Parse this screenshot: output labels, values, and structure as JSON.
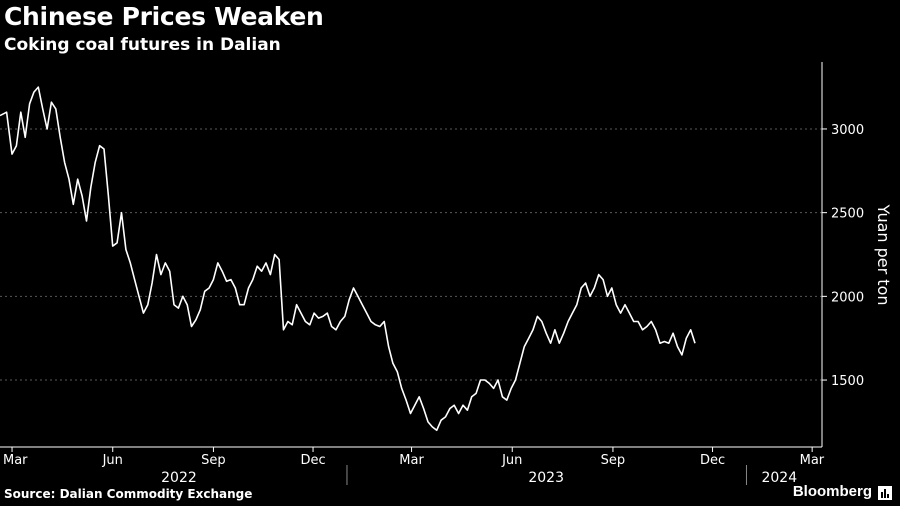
{
  "title": "Chinese Prices Weaken",
  "subtitle": "Coking coal futures in Dalian",
  "source": "Source: Dalian Commodity Exchange",
  "brand": "Bloomberg",
  "colors": {
    "background": "#000000",
    "line": "#ffffff",
    "grid": "#5a5a5a"
  },
  "chart_data": {
    "type": "line",
    "title": "Chinese Prices Weaken",
    "subtitle": "Coking coal futures in Dalian",
    "xlabel": "",
    "ylabel": "Yuan per ton",
    "ylim": [
      1100,
      3400
    ],
    "y_ticks": [
      1500,
      2000,
      2500,
      3000
    ],
    "grid": "horizontal dotted",
    "y_axis_side": "right",
    "x_ticks": [
      {
        "date": "2022-03-01",
        "label": "Mar"
      },
      {
        "date": "2022-06-01",
        "label": "Jun"
      },
      {
        "date": "2022-09-01",
        "label": "Sep"
      },
      {
        "date": "2022-12-01",
        "label": "Dec"
      },
      {
        "date": "2023-03-01",
        "label": "Mar"
      },
      {
        "date": "2023-06-01",
        "label": "Jun"
      },
      {
        "date": "2023-09-01",
        "label": "Sep"
      },
      {
        "date": "2023-12-01",
        "label": "Dec"
      },
      {
        "date": "2024-03-01",
        "label": "Mar"
      }
    ],
    "years": [
      {
        "label": "2022",
        "from": "2022-03-01",
        "to": "2022-12-31"
      },
      {
        "label": "2023",
        "from": "2023-01-01",
        "to": "2023-12-31"
      },
      {
        "label": "2024",
        "from": "2024-01-01",
        "to": "2024-03-01"
      }
    ],
    "series": [
      {
        "name": "",
        "points": [
          [
            "2022-02-18",
            3080
          ],
          [
            "2022-02-24",
            3100
          ],
          [
            "2022-03-01",
            2850
          ],
          [
            "2022-03-05",
            2900
          ],
          [
            "2022-03-09",
            3100
          ],
          [
            "2022-03-13",
            2950
          ],
          [
            "2022-03-17",
            3150
          ],
          [
            "2022-03-21",
            3220
          ],
          [
            "2022-03-25",
            3250
          ],
          [
            "2022-03-29",
            3120
          ],
          [
            "2022-04-02",
            3000
          ],
          [
            "2022-04-06",
            3160
          ],
          [
            "2022-04-10",
            3120
          ],
          [
            "2022-04-14",
            2950
          ],
          [
            "2022-04-18",
            2800
          ],
          [
            "2022-04-22",
            2700
          ],
          [
            "2022-04-26",
            2550
          ],
          [
            "2022-04-30",
            2700
          ],
          [
            "2022-05-04",
            2600
          ],
          [
            "2022-05-08",
            2450
          ],
          [
            "2022-05-12",
            2650
          ],
          [
            "2022-05-16",
            2800
          ],
          [
            "2022-05-20",
            2900
          ],
          [
            "2022-05-24",
            2880
          ],
          [
            "2022-05-28",
            2600
          ],
          [
            "2022-06-01",
            2300
          ],
          [
            "2022-06-05",
            2320
          ],
          [
            "2022-06-09",
            2500
          ],
          [
            "2022-06-13",
            2280
          ],
          [
            "2022-06-17",
            2200
          ],
          [
            "2022-06-21",
            2100
          ],
          [
            "2022-06-25",
            2000
          ],
          [
            "2022-06-29",
            1900
          ],
          [
            "2022-07-03",
            1950
          ],
          [
            "2022-07-07",
            2080
          ],
          [
            "2022-07-11",
            2250
          ],
          [
            "2022-07-15",
            2130
          ],
          [
            "2022-07-19",
            2200
          ],
          [
            "2022-07-23",
            2150
          ],
          [
            "2022-07-27",
            1950
          ],
          [
            "2022-07-31",
            1930
          ],
          [
            "2022-08-04",
            2000
          ],
          [
            "2022-08-08",
            1950
          ],
          [
            "2022-08-12",
            1820
          ],
          [
            "2022-08-16",
            1860
          ],
          [
            "2022-08-20",
            1920
          ],
          [
            "2022-08-24",
            2030
          ],
          [
            "2022-08-28",
            2050
          ],
          [
            "2022-09-01",
            2100
          ],
          [
            "2022-09-05",
            2200
          ],
          [
            "2022-09-09",
            2150
          ],
          [
            "2022-09-13",
            2090
          ],
          [
            "2022-09-17",
            2100
          ],
          [
            "2022-09-21",
            2050
          ],
          [
            "2022-09-25",
            1950
          ],
          [
            "2022-09-29",
            1950
          ],
          [
            "2022-10-03",
            2050
          ],
          [
            "2022-10-07",
            2100
          ],
          [
            "2022-10-11",
            2180
          ],
          [
            "2022-10-15",
            2150
          ],
          [
            "2022-10-19",
            2200
          ],
          [
            "2022-10-23",
            2130
          ],
          [
            "2022-10-27",
            2250
          ],
          [
            "2022-10-31",
            2220
          ],
          [
            "2022-11-04",
            1800
          ],
          [
            "2022-11-08",
            1850
          ],
          [
            "2022-11-12",
            1830
          ],
          [
            "2022-11-16",
            1950
          ],
          [
            "2022-11-20",
            1900
          ],
          [
            "2022-11-24",
            1850
          ],
          [
            "2022-11-28",
            1830
          ],
          [
            "2022-12-02",
            1900
          ],
          [
            "2022-12-06",
            1870
          ],
          [
            "2022-12-10",
            1880
          ],
          [
            "2022-12-14",
            1900
          ],
          [
            "2022-12-18",
            1820
          ],
          [
            "2022-12-22",
            1800
          ],
          [
            "2022-12-26",
            1850
          ],
          [
            "2022-12-30",
            1880
          ],
          [
            "2023-01-03",
            1980
          ],
          [
            "2023-01-07",
            2050
          ],
          [
            "2023-01-11",
            2000
          ],
          [
            "2023-01-15",
            1950
          ],
          [
            "2023-01-19",
            1900
          ],
          [
            "2023-01-23",
            1850
          ],
          [
            "2023-01-27",
            1830
          ],
          [
            "2023-01-31",
            1820
          ],
          [
            "2023-02-04",
            1850
          ],
          [
            "2023-02-08",
            1700
          ],
          [
            "2023-02-12",
            1600
          ],
          [
            "2023-02-16",
            1550
          ],
          [
            "2023-02-20",
            1450
          ],
          [
            "2023-02-24",
            1380
          ],
          [
            "2023-02-28",
            1300
          ],
          [
            "2023-03-04",
            1350
          ],
          [
            "2023-03-08",
            1400
          ],
          [
            "2023-03-12",
            1330
          ],
          [
            "2023-03-16",
            1250
          ],
          [
            "2023-03-20",
            1220
          ],
          [
            "2023-03-24",
            1200
          ],
          [
            "2023-03-28",
            1260
          ],
          [
            "2023-04-01",
            1280
          ],
          [
            "2023-04-05",
            1330
          ],
          [
            "2023-04-09",
            1350
          ],
          [
            "2023-04-13",
            1300
          ],
          [
            "2023-04-17",
            1350
          ],
          [
            "2023-04-21",
            1320
          ],
          [
            "2023-04-25",
            1400
          ],
          [
            "2023-04-29",
            1420
          ],
          [
            "2023-05-03",
            1500
          ],
          [
            "2023-05-07",
            1500
          ],
          [
            "2023-05-11",
            1480
          ],
          [
            "2023-05-15",
            1450
          ],
          [
            "2023-05-19",
            1500
          ],
          [
            "2023-05-23",
            1400
          ],
          [
            "2023-05-27",
            1380
          ],
          [
            "2023-05-31",
            1450
          ],
          [
            "2023-06-04",
            1500
          ],
          [
            "2023-06-08",
            1600
          ],
          [
            "2023-06-12",
            1700
          ],
          [
            "2023-06-16",
            1750
          ],
          [
            "2023-06-20",
            1800
          ],
          [
            "2023-06-24",
            1880
          ],
          [
            "2023-06-28",
            1850
          ],
          [
            "2023-07-02",
            1780
          ],
          [
            "2023-07-06",
            1720
          ],
          [
            "2023-07-10",
            1800
          ],
          [
            "2023-07-14",
            1720
          ],
          [
            "2023-07-18",
            1780
          ],
          [
            "2023-07-22",
            1850
          ],
          [
            "2023-07-26",
            1900
          ],
          [
            "2023-07-30",
            1950
          ],
          [
            "2023-08-03",
            2050
          ],
          [
            "2023-08-07",
            2080
          ],
          [
            "2023-08-11",
            2000
          ],
          [
            "2023-08-15",
            2050
          ],
          [
            "2023-08-19",
            2130
          ],
          [
            "2023-08-23",
            2100
          ],
          [
            "2023-08-27",
            2000
          ],
          [
            "2023-08-31",
            2050
          ],
          [
            "2023-09-04",
            1950
          ],
          [
            "2023-09-08",
            1900
          ],
          [
            "2023-09-12",
            1950
          ],
          [
            "2023-09-16",
            1900
          ],
          [
            "2023-09-20",
            1850
          ],
          [
            "2023-09-24",
            1850
          ],
          [
            "2023-09-28",
            1800
          ],
          [
            "2023-10-02",
            1820
          ],
          [
            "2023-10-06",
            1850
          ],
          [
            "2023-10-10",
            1800
          ],
          [
            "2023-10-14",
            1720
          ],
          [
            "2023-10-18",
            1730
          ],
          [
            "2023-10-22",
            1720
          ],
          [
            "2023-10-26",
            1780
          ],
          [
            "2023-10-30",
            1700
          ],
          [
            "2023-11-03",
            1650
          ],
          [
            "2023-11-07",
            1750
          ],
          [
            "2023-11-11",
            1800
          ],
          [
            "2023-11-15",
            1720
          ]
        ]
      }
    ]
  }
}
